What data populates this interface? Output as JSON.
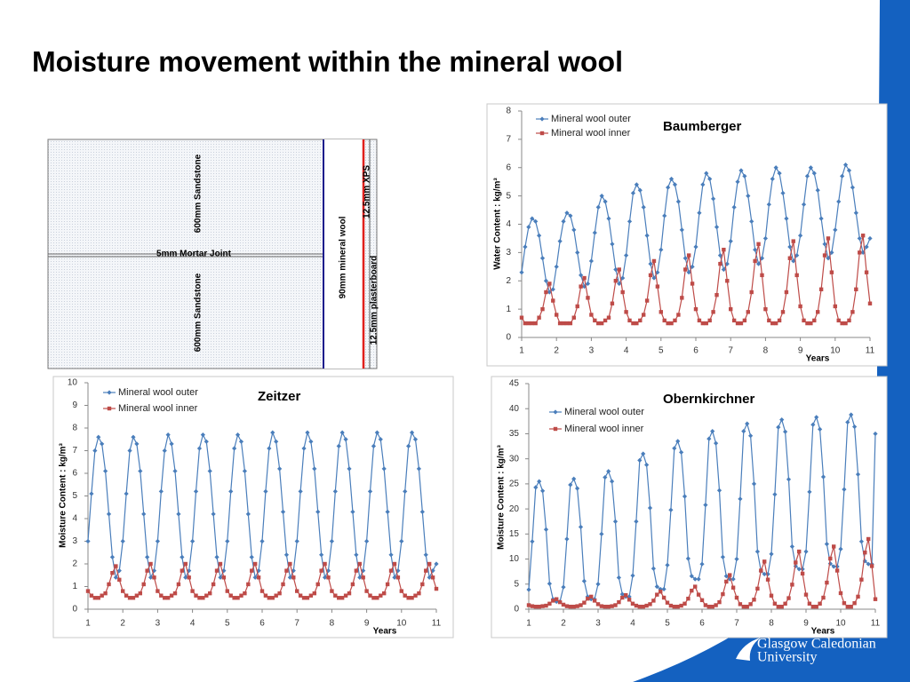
{
  "title": "Moisture movement within the mineral wool",
  "diagram": {
    "upper_stone": "600mm Sandstone",
    "joint": "5mm Mortar Joint",
    "lower_stone": "600mm Sandstone",
    "insulation": "90mm mineral wool",
    "xps": "12.5mm XPS",
    "board": "12.5mm plasterboard"
  },
  "logo": [
    "Glasgow Caledonian",
    "University"
  ],
  "chart_data": [
    {
      "type": "line",
      "title": "Baumberger",
      "xlabel": "Years",
      "ylabel": "Water Content : kg/m³",
      "xlim": [
        1,
        11
      ],
      "xticks": [
        1,
        2,
        3,
        4,
        5,
        6,
        7,
        8,
        9,
        10,
        11
      ],
      "ylim": [
        0,
        8
      ],
      "yticks": [
        0,
        1,
        2,
        3,
        4,
        5,
        6,
        7,
        8
      ],
      "grid": false,
      "x": [
        1,
        1.1,
        1.2,
        1.3,
        1.4,
        1.5,
        1.6,
        1.7,
        1.8,
        1.9,
        2,
        2.1,
        2.2,
        2.3,
        2.4,
        2.5,
        2.6,
        2.7,
        2.8,
        2.9,
        3,
        3.1,
        3.2,
        3.3,
        3.4,
        3.5,
        3.6,
        3.7,
        3.8,
        3.9,
        4,
        4.1,
        4.2,
        4.3,
        4.4,
        4.5,
        4.6,
        4.7,
        4.8,
        4.9,
        5,
        5.1,
        5.2,
        5.3,
        5.4,
        5.5,
        5.6,
        5.7,
        5.8,
        5.9,
        6,
        6.1,
        6.2,
        6.3,
        6.4,
        6.5,
        6.6,
        6.7,
        6.8,
        6.9,
        7,
        7.1,
        7.2,
        7.3,
        7.4,
        7.5,
        7.6,
        7.7,
        7.8,
        7.9,
        8,
        8.1,
        8.2,
        8.3,
        8.4,
        8.5,
        8.6,
        8.7,
        8.8,
        8.9,
        9,
        9.1,
        9.2,
        9.3,
        9.4,
        9.5,
        9.6,
        9.7,
        9.8,
        9.9,
        10,
        10.1,
        10.2,
        10.3,
        10.4,
        10.5,
        10.6,
        10.7,
        10.8,
        10.9,
        11
      ],
      "series": [
        {
          "name": "Mineral wool outer",
          "color": "#4a7ebb",
          "marker": "diamond",
          "values": [
            2.3,
            3.2,
            3.9,
            4.2,
            4.1,
            3.6,
            2.8,
            2.0,
            1.6,
            1.7,
            2.5,
            3.4,
            4.1,
            4.4,
            4.3,
            3.8,
            3.0,
            2.2,
            1.8,
            1.9,
            2.7,
            3.7,
            4.6,
            5.0,
            4.8,
            4.2,
            3.3,
            2.4,
            1.9,
            2.1,
            2.9,
            4.1,
            5.1,
            5.4,
            5.2,
            4.6,
            3.6,
            2.6,
            2.1,
            2.3,
            3.1,
            4.3,
            5.3,
            5.6,
            5.4,
            4.8,
            3.8,
            2.8,
            2.3,
            2.5,
            3.2,
            4.4,
            5.4,
            5.8,
            5.6,
            4.9,
            3.9,
            2.9,
            2.4,
            2.6,
            3.4,
            4.6,
            5.5,
            5.9,
            5.7,
            5.0,
            4.1,
            3.1,
            2.6,
            2.8,
            3.5,
            4.7,
            5.6,
            6.0,
            5.8,
            5.1,
            4.2,
            3.2,
            2.7,
            2.9,
            3.6,
            4.7,
            5.7,
            6.0,
            5.8,
            5.2,
            4.2,
            3.3,
            2.8,
            3.0,
            3.8,
            4.8,
            5.7,
            6.1,
            5.9,
            5.3,
            4.4,
            3.5,
            3.0,
            3.2,
            3.5
          ]
        },
        {
          "name": "Mineral wool inner",
          "color": "#be4b48",
          "marker": "square",
          "values": [
            0.7,
            0.5,
            0.5,
            0.5,
            0.5,
            0.7,
            1.0,
            1.6,
            1.9,
            1.3,
            0.8,
            0.5,
            0.5,
            0.5,
            0.5,
            0.7,
            1.1,
            1.8,
            2.1,
            1.4,
            0.8,
            0.6,
            0.5,
            0.5,
            0.6,
            0.7,
            1.2,
            2.0,
            2.4,
            1.6,
            0.9,
            0.6,
            0.5,
            0.5,
            0.6,
            0.8,
            1.3,
            2.2,
            2.7,
            1.8,
            0.9,
            0.6,
            0.5,
            0.5,
            0.6,
            0.8,
            1.4,
            2.4,
            2.9,
            1.9,
            1.0,
            0.6,
            0.5,
            0.5,
            0.6,
            0.9,
            1.5,
            2.6,
            3.1,
            2.0,
            1.0,
            0.6,
            0.5,
            0.5,
            0.6,
            0.9,
            1.6,
            2.7,
            3.3,
            2.2,
            1.0,
            0.6,
            0.5,
            0.5,
            0.6,
            0.9,
            1.6,
            2.8,
            3.4,
            2.2,
            1.1,
            0.6,
            0.5,
            0.5,
            0.6,
            0.9,
            1.7,
            2.9,
            3.5,
            2.3,
            1.1,
            0.6,
            0.5,
            0.5,
            0.6,
            0.9,
            1.7,
            3.0,
            3.6,
            2.3,
            1.2
          ]
        }
      ]
    },
    {
      "type": "line",
      "title": "Zeitzer",
      "xlabel": "Years",
      "ylabel": "Moisture Content : kg/m³",
      "xlim": [
        1,
        11
      ],
      "xticks": [
        1,
        2,
        3,
        4,
        5,
        6,
        7,
        8,
        9,
        10,
        11
      ],
      "ylim": [
        0,
        10
      ],
      "yticks": [
        0,
        1,
        2,
        3,
        4,
        5,
        6,
        7,
        8,
        9,
        10
      ],
      "grid": false,
      "x": [
        1,
        1.1,
        1.2,
        1.3,
        1.4,
        1.5,
        1.6,
        1.7,
        1.8,
        1.9,
        2,
        2.1,
        2.2,
        2.3,
        2.4,
        2.5,
        2.6,
        2.7,
        2.8,
        2.9,
        3,
        3.1,
        3.2,
        3.3,
        3.4,
        3.5,
        3.6,
        3.7,
        3.8,
        3.9,
        4,
        4.1,
        4.2,
        4.3,
        4.4,
        4.5,
        4.6,
        4.7,
        4.8,
        4.9,
        5,
        5.1,
        5.2,
        5.3,
        5.4,
        5.5,
        5.6,
        5.7,
        5.8,
        5.9,
        6,
        6.1,
        6.2,
        6.3,
        6.4,
        6.5,
        6.6,
        6.7,
        6.8,
        6.9,
        7,
        7.1,
        7.2,
        7.3,
        7.4,
        7.5,
        7.6,
        7.7,
        7.8,
        7.9,
        8,
        8.1,
        8.2,
        8.3,
        8.4,
        8.5,
        8.6,
        8.7,
        8.8,
        8.9,
        9,
        9.1,
        9.2,
        9.3,
        9.4,
        9.5,
        9.6,
        9.7,
        9.8,
        9.9,
        10,
        10.1,
        10.2,
        10.3,
        10.4,
        10.5,
        10.6,
        10.7,
        10.8,
        10.9,
        11
      ],
      "series": [
        {
          "name": "Mineral wool outer",
          "color": "#4a7ebb",
          "marker": "diamond",
          "values": [
            3.0,
            5.1,
            7.0,
            7.6,
            7.3,
            6.1,
            4.2,
            2.3,
            1.4,
            1.7,
            3.0,
            5.1,
            7.0,
            7.6,
            7.3,
            6.1,
            4.2,
            2.3,
            1.4,
            1.7,
            3.0,
            5.2,
            7.0,
            7.7,
            7.3,
            6.1,
            4.2,
            2.3,
            1.4,
            1.7,
            3.0,
            5.2,
            7.1,
            7.7,
            7.4,
            6.1,
            4.2,
            2.3,
            1.4,
            1.7,
            3.0,
            5.2,
            7.1,
            7.7,
            7.4,
            6.1,
            4.2,
            2.3,
            1.4,
            1.7,
            3.0,
            5.2,
            7.1,
            7.8,
            7.4,
            6.2,
            4.3,
            2.4,
            1.4,
            1.7,
            3.0,
            5.2,
            7.1,
            7.8,
            7.4,
            6.2,
            4.3,
            2.4,
            1.4,
            1.7,
            3.0,
            5.2,
            7.2,
            7.8,
            7.5,
            6.2,
            4.3,
            2.4,
            1.4,
            1.7,
            3.0,
            5.2,
            7.2,
            7.8,
            7.5,
            6.2,
            4.3,
            2.4,
            1.4,
            1.7,
            3.0,
            5.2,
            7.2,
            7.8,
            7.5,
            6.2,
            4.3,
            2.4,
            1.4,
            1.7,
            2.0
          ]
        },
        {
          "name": "Mineral wool inner",
          "color": "#be4b48",
          "marker": "square",
          "values": [
            0.8,
            0.6,
            0.5,
            0.5,
            0.6,
            0.7,
            1.1,
            1.6,
            1.9,
            1.3,
            0.8,
            0.6,
            0.5,
            0.5,
            0.6,
            0.7,
            1.1,
            1.7,
            2.0,
            1.4,
            0.8,
            0.6,
            0.5,
            0.5,
            0.6,
            0.7,
            1.1,
            1.7,
            2.0,
            1.4,
            0.8,
            0.6,
            0.5,
            0.5,
            0.6,
            0.7,
            1.1,
            1.7,
            2.0,
            1.4,
            0.8,
            0.6,
            0.5,
            0.5,
            0.6,
            0.7,
            1.1,
            1.7,
            2.0,
            1.4,
            0.8,
            0.6,
            0.5,
            0.5,
            0.6,
            0.7,
            1.1,
            1.7,
            2.0,
            1.4,
            0.8,
            0.6,
            0.5,
            0.5,
            0.6,
            0.7,
            1.1,
            1.7,
            2.0,
            1.4,
            0.8,
            0.6,
            0.5,
            0.5,
            0.6,
            0.7,
            1.1,
            1.7,
            2.0,
            1.4,
            0.8,
            0.6,
            0.5,
            0.5,
            0.6,
            0.7,
            1.1,
            1.7,
            2.0,
            1.4,
            0.8,
            0.6,
            0.5,
            0.5,
            0.6,
            0.7,
            1.1,
            1.7,
            2.0,
            1.4,
            0.9
          ]
        }
      ]
    },
    {
      "type": "line",
      "title": "Obernkirchner",
      "xlabel": "Years",
      "ylabel": "Moisture Content : kg/m³",
      "xlim": [
        1,
        11
      ],
      "xticks": [
        1,
        2,
        3,
        4,
        5,
        6,
        7,
        8,
        9,
        10,
        11
      ],
      "ylim": [
        0,
        45
      ],
      "yticks": [
        0,
        5,
        10,
        15,
        20,
        25,
        30,
        35,
        40,
        45
      ],
      "grid": false,
      "x": [
        1,
        1.1,
        1.2,
        1.3,
        1.4,
        1.5,
        1.6,
        1.7,
        1.8,
        1.9,
        2,
        2.1,
        2.2,
        2.3,
        2.4,
        2.5,
        2.6,
        2.7,
        2.8,
        2.9,
        3,
        3.1,
        3.2,
        3.3,
        3.4,
        3.5,
        3.6,
        3.7,
        3.8,
        3.9,
        4,
        4.1,
        4.2,
        4.3,
        4.4,
        4.5,
        4.6,
        4.7,
        4.8,
        4.9,
        5,
        5.1,
        5.2,
        5.3,
        5.4,
        5.5,
        5.6,
        5.7,
        5.8,
        5.9,
        6,
        6.1,
        6.2,
        6.3,
        6.4,
        6.5,
        6.6,
        6.7,
        6.8,
        6.9,
        7,
        7.1,
        7.2,
        7.3,
        7.4,
        7.5,
        7.6,
        7.7,
        7.8,
        7.9,
        8,
        8.1,
        8.2,
        8.3,
        8.4,
        8.5,
        8.6,
        8.7,
        8.8,
        8.9,
        9,
        9.1,
        9.2,
        9.3,
        9.4,
        9.5,
        9.6,
        9.7,
        9.8,
        9.9,
        10,
        10.1,
        10.2,
        10.3,
        10.4,
        10.5,
        10.6,
        10.7,
        10.8,
        10.9,
        11
      ],
      "series": [
        {
          "name": "Mineral wool outer",
          "color": "#4a7ebb",
          "marker": "diamond",
          "values": [
            3.9,
            13.5,
            24.3,
            25.5,
            23.6,
            15.9,
            5.1,
            2.0,
            1.5,
            1.5,
            4.4,
            14.0,
            24.8,
            26.0,
            24.1,
            16.4,
            5.6,
            2.5,
            2.0,
            2.0,
            5.0,
            15.0,
            26.3,
            27.5,
            25.5,
            17.5,
            6.3,
            3.0,
            2.5,
            2.5,
            6.7,
            17.5,
            29.7,
            31.0,
            28.8,
            20.2,
            8.1,
            4.5,
            4.0,
            4.0,
            8.8,
            19.8,
            32.1,
            33.5,
            31.3,
            22.5,
            10.1,
            6.6,
            6.0,
            6.0,
            9.0,
            20.8,
            34.0,
            35.5,
            33.1,
            23.7,
            10.4,
            6.6,
            6.0,
            6.0,
            10.0,
            22.0,
            35.5,
            37.0,
            34.6,
            25.0,
            11.5,
            7.6,
            7.0,
            7.0,
            11.0,
            22.9,
            36.3,
            37.8,
            35.4,
            25.9,
            12.5,
            8.6,
            8.0,
            8.0,
            11.5,
            23.4,
            36.8,
            38.3,
            35.9,
            26.4,
            13.0,
            9.1,
            8.5,
            8.5,
            12.0,
            23.9,
            37.3,
            38.8,
            36.4,
            26.9,
            13.5,
            9.6,
            9.0,
            9.0,
            35.0
          ]
        },
        {
          "name": "Mineral wool inner",
          "color": "#be4b48",
          "marker": "square",
          "values": [
            0.8,
            0.6,
            0.5,
            0.5,
            0.6,
            0.7,
            1.1,
            1.7,
            2.0,
            1.4,
            0.9,
            0.6,
            0.5,
            0.5,
            0.6,
            0.8,
            1.3,
            2.1,
            2.5,
            1.7,
            1.0,
            0.6,
            0.5,
            0.5,
            0.6,
            0.8,
            1.4,
            2.3,
            2.8,
            1.9,
            1.1,
            0.7,
            0.5,
            0.5,
            0.7,
            1.0,
            1.7,
            2.9,
            3.5,
            2.3,
            1.3,
            0.7,
            0.5,
            0.5,
            0.7,
            1.1,
            2.1,
            3.7,
            4.5,
            2.9,
            1.8,
            0.8,
            0.5,
            0.5,
            0.8,
            1.4,
            3.0,
            5.5,
            6.8,
            4.3,
            2.3,
            1.0,
            0.5,
            0.5,
            1.0,
            1.9,
            4.1,
            7.7,
            9.5,
            5.9,
            2.7,
            1.1,
            0.5,
            0.5,
            1.1,
            2.2,
            4.9,
            9.3,
            11.5,
            7.1,
            2.9,
            1.1,
            0.5,
            0.5,
            1.1,
            2.3,
            5.3,
            10.1,
            12.5,
            7.7,
            3.2,
            1.2,
            0.5,
            0.5,
            1.2,
            2.5,
            5.9,
            11.3,
            14.0,
            8.6,
            2.0
          ]
        }
      ]
    }
  ]
}
